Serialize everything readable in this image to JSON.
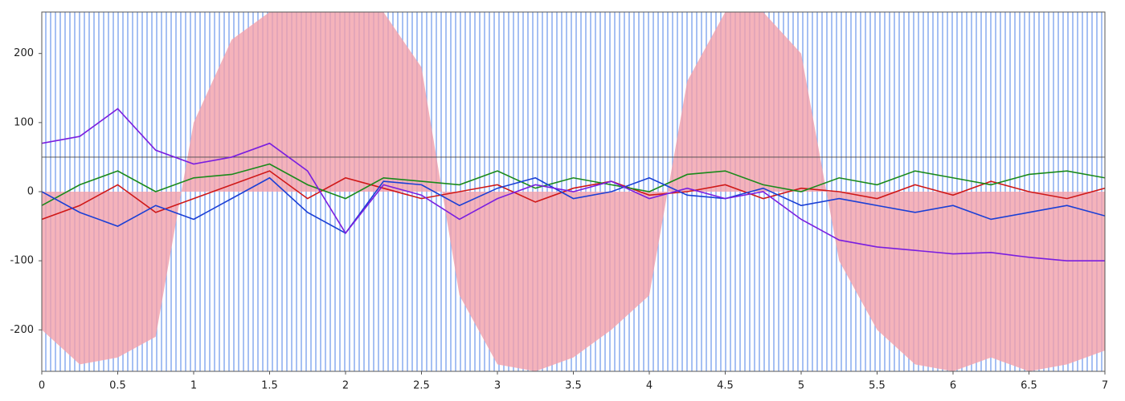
{
  "chart_data": {
    "type": "line",
    "xlim": [
      0,
      7
    ],
    "ylim": [
      -260,
      260
    ],
    "xticks": [
      0,
      0.5,
      1,
      1.5,
      2,
      2.5,
      3,
      3.5,
      4,
      4.5,
      5,
      5.5,
      6,
      6.5,
      7
    ],
    "yticks": [
      -200,
      -100,
      0,
      100,
      200
    ],
    "hline": 50,
    "x": [
      0,
      0.25,
      0.5,
      0.75,
      1,
      1.25,
      1.5,
      1.75,
      2,
      2.25,
      2.5,
      2.75,
      3,
      3.25,
      3.5,
      3.75,
      4,
      4.25,
      4.5,
      4.75,
      5,
      5.25,
      5.5,
      5.75,
      6,
      6.25,
      6.5,
      6.75,
      7
    ],
    "envelope": {
      "color": "#f2a0aa",
      "values": [
        -200,
        -250,
        -240,
        -210,
        100,
        220,
        260,
        260,
        260,
        260,
        180,
        -150,
        -250,
        -260,
        -240,
        -200,
        -150,
        160,
        260,
        260,
        200,
        -100,
        -200,
        -250,
        -260,
        -240,
        -260,
        -250,
        -230
      ]
    },
    "series": [
      {
        "color": "#d01818",
        "values": [
          -40,
          -20,
          10,
          -30,
          -10,
          10,
          30,
          -10,
          20,
          5,
          -10,
          0,
          10,
          -15,
          5,
          15,
          -5,
          0,
          10,
          -10,
          5,
          0,
          -10,
          10,
          -5,
          15,
          0,
          -10,
          5
        ]
      },
      {
        "color": "#1a8a1a",
        "values": [
          -20,
          10,
          30,
          0,
          20,
          25,
          40,
          10,
          -10,
          20,
          15,
          10,
          30,
          5,
          20,
          10,
          0,
          25,
          30,
          10,
          0,
          20,
          10,
          30,
          20,
          10,
          25,
          30,
          20
        ]
      },
      {
        "color": "#1a3fd6",
        "values": [
          0,
          -30,
          -50,
          -20,
          -40,
          -10,
          20,
          -30,
          -60,
          15,
          10,
          -20,
          5,
          20,
          -10,
          0,
          20,
          -5,
          -10,
          5,
          -20,
          -10,
          -20,
          -30,
          -20,
          -40,
          -30,
          -20,
          -35
        ]
      },
      {
        "color": "#7a1ee0",
        "values": [
          70,
          80,
          120,
          60,
          40,
          50,
          70,
          30,
          -60,
          10,
          -5,
          -40,
          -10,
          10,
          0,
          15,
          -10,
          5,
          -10,
          0,
          -40,
          -70,
          -80,
          -85,
          -90,
          -88,
          -95,
          -100,
          -100
        ]
      }
    ]
  }
}
